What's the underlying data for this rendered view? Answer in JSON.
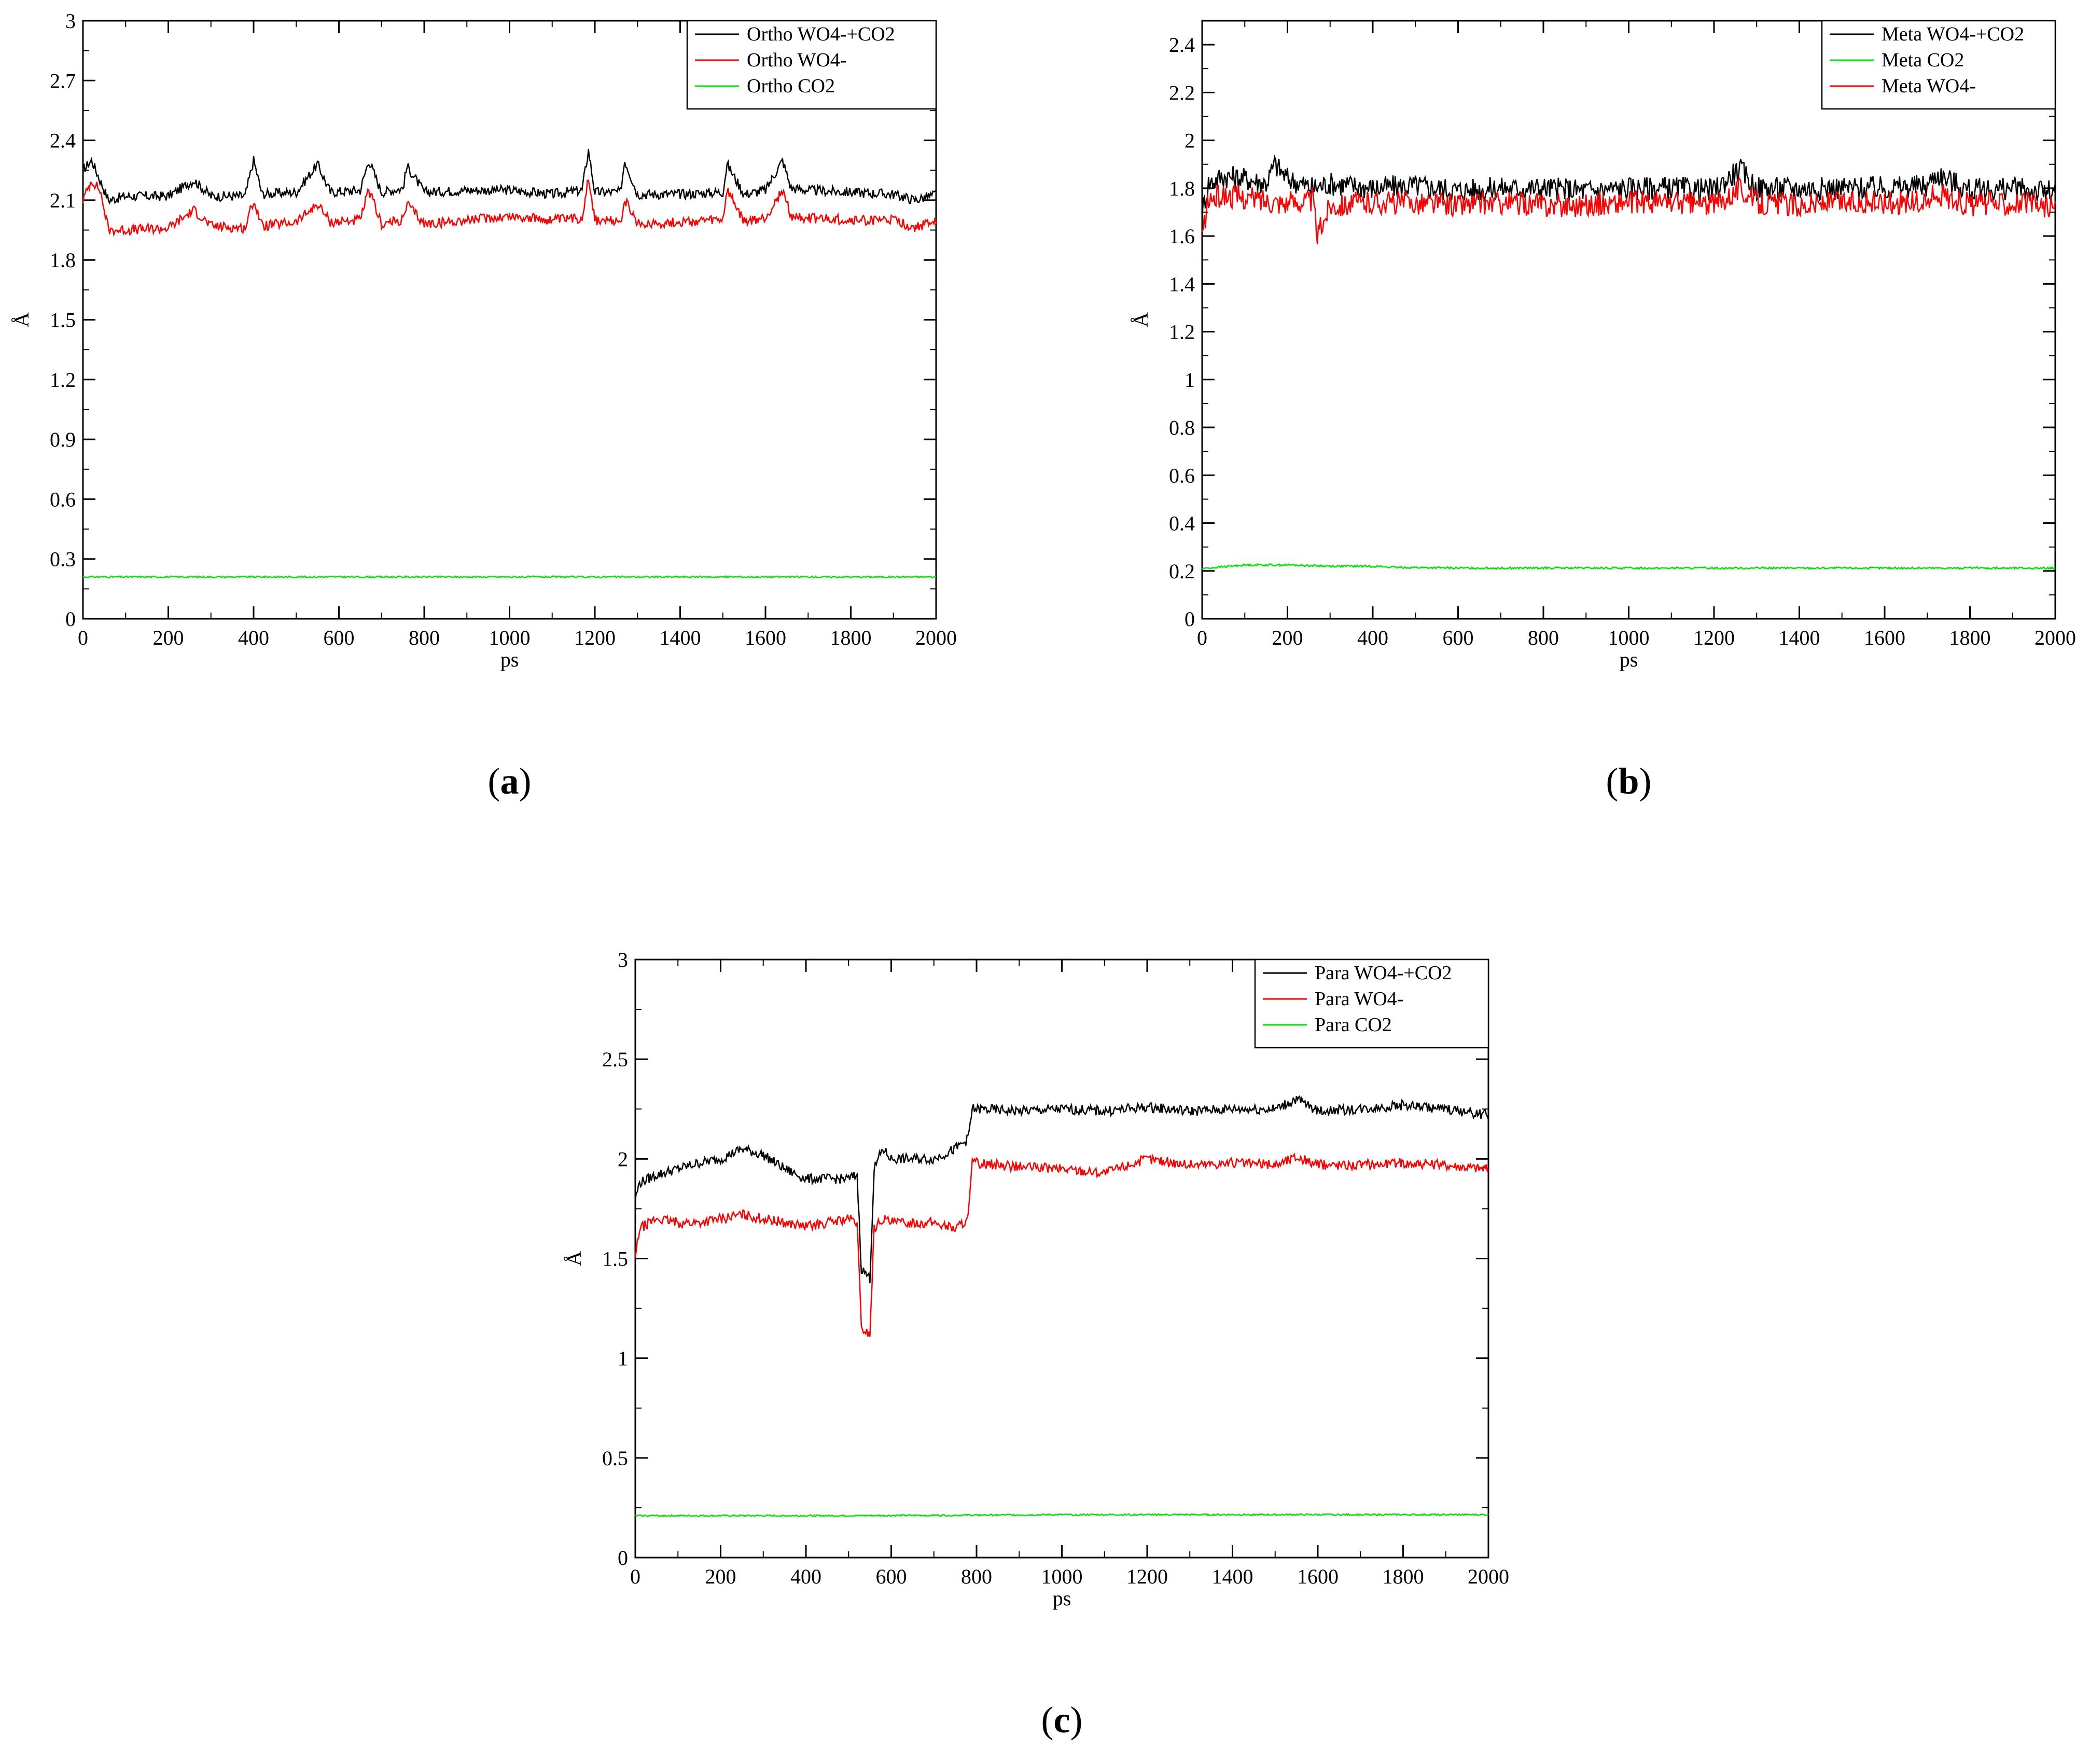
{
  "colors": {
    "black": "#000000",
    "red": "#ff0000",
    "green": "#00e600"
  },
  "chart_data": [
    {
      "panel_label": "a",
      "type": "line",
      "xlabel": "ps",
      "ylabel": "Å",
      "xlim": [
        0,
        2000
      ],
      "ylim": [
        0,
        3
      ],
      "xticks": [
        0,
        200,
        400,
        600,
        800,
        1000,
        1200,
        1400,
        1600,
        1800,
        2000
      ],
      "yticks": [
        0,
        0.3,
        0.6,
        0.9,
        1.2,
        1.5,
        1.8,
        2.1,
        2.4,
        2.7,
        3
      ],
      "legend_position": "top-right",
      "series": [
        {
          "name": "Ortho WO4-+CO2",
          "color": "#000000",
          "x": [
            0,
            20,
            40,
            60,
            100,
            200,
            260,
            300,
            380,
            400,
            420,
            500,
            550,
            580,
            650,
            670,
            700,
            750,
            760,
            800,
            900,
            1000,
            1100,
            1170,
            1185,
            1200,
            1260,
            1270,
            1300,
            1400,
            1500,
            1510,
            1550,
            1600,
            1640,
            1660,
            1700,
            1800,
            1900,
            1950,
            2000
          ],
          "values": [
            2.25,
            2.3,
            2.2,
            2.1,
            2.12,
            2.12,
            2.2,
            2.12,
            2.12,
            2.3,
            2.13,
            2.14,
            2.28,
            2.14,
            2.15,
            2.3,
            2.14,
            2.16,
            2.27,
            2.14,
            2.15,
            2.15,
            2.13,
            2.15,
            2.35,
            2.14,
            2.14,
            2.3,
            2.13,
            2.13,
            2.14,
            2.28,
            2.13,
            2.15,
            2.3,
            2.16,
            2.15,
            2.14,
            2.13,
            2.1,
            2.13
          ]
        },
        {
          "name": "Ortho WO4-",
          "color": "#ff0000",
          "x": [
            0,
            20,
            40,
            60,
            100,
            200,
            260,
            300,
            380,
            400,
            420,
            500,
            550,
            580,
            650,
            670,
            700,
            750,
            760,
            800,
            900,
            1000,
            1100,
            1170,
            1185,
            1200,
            1260,
            1270,
            1300,
            1400,
            1500,
            1510,
            1550,
            1600,
            1640,
            1660,
            1700,
            1800,
            1900,
            1950,
            2000
          ],
          "values": [
            2.1,
            2.2,
            2.15,
            1.95,
            1.95,
            1.96,
            2.05,
            1.97,
            1.96,
            2.1,
            1.97,
            1.99,
            2.08,
            1.99,
            2.0,
            2.15,
            1.98,
            2.0,
            2.08,
            1.98,
            2.0,
            2.02,
            2.0,
            2.01,
            2.22,
            2.0,
            1.99,
            2.1,
            1.98,
            1.99,
            2.0,
            2.15,
            1.99,
            2.01,
            2.15,
            2.02,
            2.01,
            2.0,
            2.0,
            1.96,
            2.0
          ]
        },
        {
          "name": "Ortho CO2",
          "color": "#00e600",
          "x": [
            0,
            500,
            1000,
            1500,
            2000
          ],
          "values": [
            0.21,
            0.21,
            0.21,
            0.21,
            0.21
          ]
        }
      ]
    },
    {
      "panel_label": "b",
      "type": "line",
      "xlabel": "ps",
      "ylabel": "Å",
      "xlim": [
        0,
        2000
      ],
      "ylim": [
        0,
        2.5
      ],
      "xticks": [
        0,
        200,
        400,
        600,
        800,
        1000,
        1200,
        1400,
        1600,
        1800,
        2000
      ],
      "yticks": [
        0,
        0.2,
        0.4,
        0.6,
        0.8,
        1,
        1.2,
        1.4,
        1.6,
        1.8,
        2,
        2.2,
        2.4
      ],
      "legend_position": "top-right",
      "series": [
        {
          "name": "Meta WO4-+CO2",
          "color": "#000000",
          "x": [
            0,
            15,
            50,
            100,
            150,
            170,
            200,
            260,
            300,
            400,
            500,
            600,
            700,
            800,
            900,
            1000,
            1100,
            1200,
            1260,
            1300,
            1400,
            1500,
            1600,
            1700,
            1720,
            1800,
            1900,
            2000
          ],
          "values": [
            1.7,
            1.82,
            1.85,
            1.84,
            1.82,
            1.9,
            1.84,
            1.8,
            1.82,
            1.8,
            1.81,
            1.79,
            1.8,
            1.8,
            1.79,
            1.8,
            1.8,
            1.79,
            1.88,
            1.8,
            1.8,
            1.8,
            1.8,
            1.81,
            1.86,
            1.79,
            1.8,
            1.78
          ]
        },
        {
          "name": "Meta CO2",
          "color": "#00e600",
          "x": [
            0,
            100,
            200,
            300,
            400,
            450,
            600,
            800,
            1000,
            1500,
            2000
          ],
          "values": [
            0.21,
            0.225,
            0.225,
            0.22,
            0.22,
            0.215,
            0.212,
            0.212,
            0.212,
            0.212,
            0.212
          ]
        },
        {
          "name": "Meta WO4-",
          "color": "#ff0000",
          "x": [
            0,
            15,
            50,
            100,
            150,
            200,
            260,
            270,
            300,
            400,
            500,
            600,
            700,
            800,
            900,
            1000,
            1100,
            1200,
            1260,
            1300,
            1400,
            1500,
            1600,
            1700,
            1720,
            1800,
            1900,
            2000
          ],
          "values": [
            1.6,
            1.75,
            1.77,
            1.76,
            1.75,
            1.74,
            1.75,
            1.6,
            1.73,
            1.74,
            1.74,
            1.73,
            1.74,
            1.73,
            1.73,
            1.74,
            1.74,
            1.73,
            1.8,
            1.74,
            1.73,
            1.74,
            1.74,
            1.74,
            1.78,
            1.73,
            1.74,
            1.72
          ]
        }
      ]
    },
    {
      "panel_label": "c",
      "type": "line",
      "xlabel": "ps",
      "ylabel": "Å",
      "xlim": [
        0,
        2000
      ],
      "ylim": [
        0,
        3
      ],
      "xticks": [
        0,
        200,
        400,
        600,
        800,
        1000,
        1200,
        1400,
        1600,
        1800,
        2000
      ],
      "yticks": [
        0,
        0.5,
        1,
        1.5,
        2,
        2.5,
        3
      ],
      "legend_position": "top-right",
      "series": [
        {
          "name": "Para WO4-+CO2",
          "color": "#000000",
          "x": [
            0,
            10,
            50,
            100,
            150,
            200,
            250,
            300,
            350,
            400,
            450,
            500,
            520,
            530,
            550,
            560,
            580,
            600,
            700,
            750,
            780,
            790,
            800,
            900,
            1000,
            1100,
            1200,
            1300,
            1400,
            1500,
            1550,
            1600,
            1700,
            1800,
            1900,
            2000
          ],
          "values": [
            1.8,
            1.88,
            1.92,
            1.95,
            1.98,
            2.0,
            2.05,
            2.02,
            1.95,
            1.9,
            1.9,
            1.9,
            1.92,
            1.45,
            1.4,
            1.95,
            2.05,
            2.0,
            2.0,
            2.05,
            2.1,
            2.25,
            2.25,
            2.24,
            2.25,
            2.24,
            2.26,
            2.24,
            2.25,
            2.25,
            2.3,
            2.24,
            2.25,
            2.27,
            2.25,
            2.22
          ]
        },
        {
          "name": "Para WO4-",
          "color": "#ff0000",
          "x": [
            0,
            10,
            50,
            100,
            150,
            200,
            250,
            300,
            350,
            400,
            450,
            500,
            520,
            530,
            550,
            560,
            580,
            600,
            700,
            750,
            780,
            790,
            800,
            900,
            1000,
            1100,
            1200,
            1300,
            1400,
            1500,
            1550,
            1600,
            1700,
            1800,
            1900,
            2000
          ],
          "values": [
            1.5,
            1.65,
            1.7,
            1.68,
            1.68,
            1.7,
            1.72,
            1.7,
            1.68,
            1.66,
            1.68,
            1.7,
            1.68,
            1.15,
            1.12,
            1.65,
            1.7,
            1.68,
            1.68,
            1.65,
            1.7,
            1.98,
            1.98,
            1.96,
            1.95,
            1.93,
            2.0,
            1.97,
            1.98,
            1.97,
            2.01,
            1.97,
            1.97,
            1.98,
            1.97,
            1.95
          ]
        },
        {
          "name": "Para CO2",
          "color": "#00e600",
          "x": [
            0,
            500,
            1000,
            1500,
            2000
          ],
          "values": [
            0.21,
            0.21,
            0.215,
            0.215,
            0.215
          ]
        }
      ]
    }
  ]
}
